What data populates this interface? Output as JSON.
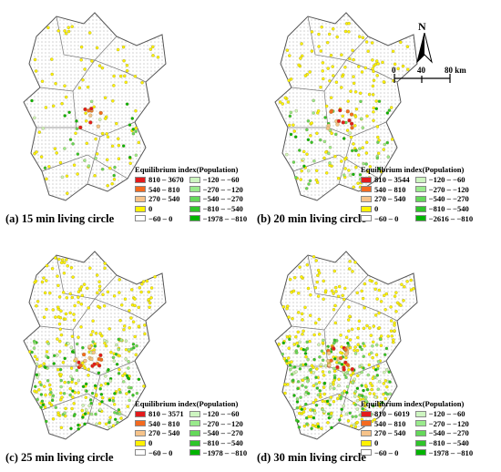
{
  "colors": {
    "c1": "#e31a1c",
    "c2": "#f46a1f",
    "c3": "#f6c38a",
    "c4": "#fff200",
    "c5": "#ffffff",
    "c6": "#cdf5c0",
    "c7": "#99ea8c",
    "c8": "#64d85a",
    "c9": "#2fc52a",
    "c10": "#00b400",
    "boundary": "#555555",
    "hatch": "#d9d9d9"
  },
  "compass": {
    "north_label": "N",
    "icon": "north-arrow-icon"
  },
  "scale": {
    "labels": [
      "0",
      "40",
      "80 km"
    ]
  },
  "panels": [
    {
      "caption": "(a) 15 min living circle",
      "legend_title": "Equilibrium index(Population)",
      "legend_left": [
        "810 – 3670",
        "540 – 810",
        "270 – 540",
        "0",
        "−60 – 0"
      ],
      "legend_right": [
        "−120 – −60",
        "−270 – −120",
        "−540 – −270",
        "−810 – −540",
        "−1978 – −810"
      ]
    },
    {
      "caption": "(b) 20 min living circle",
      "legend_title": "Equilibrium index(Population)",
      "legend_left": [
        "810 – 3544",
        "540 – 810",
        "270 – 540",
        "0",
        "−60 – 0"
      ],
      "legend_right": [
        "−120 – −60",
        "−270 – −120",
        "−540 – −270",
        "−810 – −540",
        "−2616 – −810"
      ]
    },
    {
      "caption": "(c) 25 min living circle",
      "legend_title": "Equilibrium index(Population)",
      "legend_left": [
        "810 – 3571",
        "540 – 810",
        "270 – 540",
        "0",
        "−60 – 0"
      ],
      "legend_right": [
        "−120 – −60",
        "−270 – −120",
        "−540 – −270",
        "−810 – −540",
        "−1978 – −810"
      ]
    },
    {
      "caption": "(d) 30 min living circle",
      "legend_title": "Equilibrium index(Population)",
      "legend_left": [
        "810 – 6019",
        "540 – 810",
        "270 – 540",
        "0",
        "−60 – 0"
      ],
      "legend_right": [
        "−120 – −60",
        "−270 – −120",
        "−540 – −270",
        "−810 – −540",
        "−1978 – −810"
      ]
    }
  ]
}
